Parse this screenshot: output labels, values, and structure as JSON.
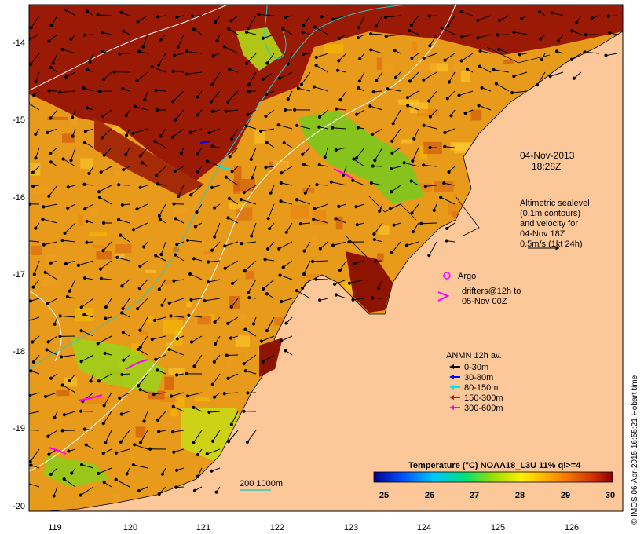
{
  "date": "04-Nov-2013",
  "time": "18:28Z",
  "lon_ticks": [
    "119",
    "120",
    "121",
    "122",
    "123",
    "124",
    "125",
    "126"
  ],
  "lat_ticks": [
    "-14",
    "-15",
    "-16",
    "-17",
    "-18",
    "-19",
    "-20"
  ],
  "altimetry_lines": [
    "Altimetric sealevel",
    "(0.1m contours)",
    "and velocity for",
    "04-Nov 18Z",
    "0.5m/s (1kt 24h)"
  ],
  "argo_label": "Argo",
  "drifters_lines": [
    "drifters@12h to",
    "05-Nov 00Z"
  ],
  "anmn_title": "ANMN 12h av.",
  "depth_classes": [
    {
      "label": "0-30m",
      "color": "#000000"
    },
    {
      "label": "30-80m",
      "color": "#0000ff"
    },
    {
      "label": "80-150m",
      "color": "#00e5e5"
    },
    {
      "label": "150-300m",
      "color": "#ff0000"
    },
    {
      "label": "300-600m",
      "color": "#ff00ff"
    }
  ],
  "isobath_label": "200  1000m",
  "colorbar_title": "Temperature (°C) NOAA18_L3U 11% ql>=4",
  "colorbar_ticks": [
    "25",
    "26",
    "27",
    "28",
    "29",
    "30"
  ],
  "colorbar_colors": [
    "#00008c",
    "#0050ff",
    "#00c8ff",
    "#00e07a",
    "#9ae000",
    "#ffee00",
    "#ffb000",
    "#f07000",
    "#d03000",
    "#8c0000"
  ],
  "land_color": "#fcc89a",
  "credit": "© IMOS 06-Apr-2015 16:55:21 Hobart time"
}
